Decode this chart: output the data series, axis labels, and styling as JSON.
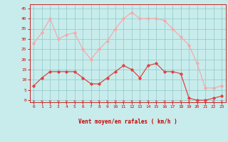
{
  "x": [
    0,
    1,
    2,
    3,
    4,
    5,
    6,
    7,
    8,
    9,
    10,
    11,
    12,
    13,
    14,
    15,
    16,
    17,
    18,
    19,
    20,
    21,
    22,
    23
  ],
  "wind_avg": [
    7,
    11,
    14,
    14,
    14,
    14,
    11,
    8,
    8,
    11,
    14,
    17,
    15,
    11,
    17,
    18,
    14,
    14,
    13,
    1,
    0,
    0,
    1,
    2
  ],
  "wind_gust": [
    28,
    33,
    40,
    30,
    32,
    33,
    25,
    20,
    25,
    29,
    35,
    40,
    43,
    40,
    40,
    40,
    39,
    35,
    31,
    27,
    18,
    6,
    6,
    7
  ],
  "xlabel": "Vent moyen/en rafales ( km/h )",
  "xlim": [
    -0.5,
    23.5
  ],
  "ylim": [
    -1,
    47
  ],
  "yticks": [
    0,
    5,
    10,
    15,
    20,
    25,
    30,
    35,
    40,
    45
  ],
  "xticks": [
    0,
    1,
    2,
    3,
    4,
    5,
    6,
    7,
    8,
    9,
    10,
    11,
    12,
    13,
    14,
    15,
    16,
    17,
    18,
    19,
    20,
    21,
    22,
    23
  ],
  "avg_color": "#dd4444",
  "gust_color": "#f5aaaa",
  "bg_color": "#c8ecec",
  "grid_color": "#99cccc",
  "tick_color": "#cc0000",
  "spine_color": "#cc2222"
}
